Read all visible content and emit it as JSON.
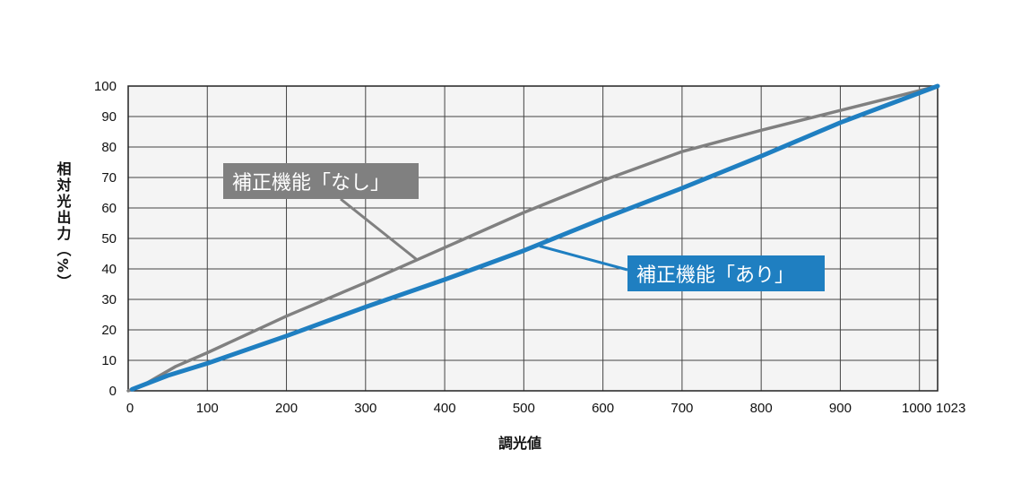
{
  "chart_data": {
    "type": "line",
    "xlabel": "調光値",
    "ylabel": "相対光出力（%）",
    "xlim": [
      0,
      1023
    ],
    "ylim": [
      0,
      100
    ],
    "x_ticks": [
      0,
      100,
      200,
      300,
      400,
      500,
      600,
      700,
      800,
      900,
      1000,
      1023
    ],
    "x_tick_labels": [
      "0",
      "100",
      "200",
      "300",
      "400",
      "500",
      "600",
      "700",
      "800",
      "900",
      "1000",
      "1023"
    ],
    "y_ticks": [
      0,
      10,
      20,
      30,
      40,
      50,
      60,
      70,
      80,
      90,
      100
    ],
    "y_tick_labels": [
      "0",
      "10",
      "20",
      "30",
      "40",
      "50",
      "60",
      "70",
      "80",
      "90",
      "100"
    ],
    "grid": true,
    "series": [
      {
        "name": "補正機能「なし」",
        "color": "#808080",
        "x": [
          0,
          20,
          60,
          100,
          200,
          300,
          400,
          500,
          600,
          700,
          800,
          900,
          1023
        ],
        "y": [
          0,
          2,
          8,
          12.5,
          24.5,
          35.5,
          47,
          58.5,
          69,
          78.5,
          85.5,
          92,
          100
        ]
      },
      {
        "name": "補正機能「あり」",
        "color": "#1f7fc1",
        "x": [
          5,
          50,
          100,
          200,
          300,
          400,
          500,
          600,
          700,
          800,
          900,
          1023
        ],
        "y": [
          0.5,
          5,
          9,
          18,
          27.5,
          36.5,
          46,
          56.5,
          66.5,
          77,
          88,
          100
        ]
      }
    ]
  },
  "colors": {
    "plot_bg": "#f4f4f4",
    "grid": "#444444",
    "gray_series": "#808080",
    "blue_series": "#1f7fc1"
  }
}
